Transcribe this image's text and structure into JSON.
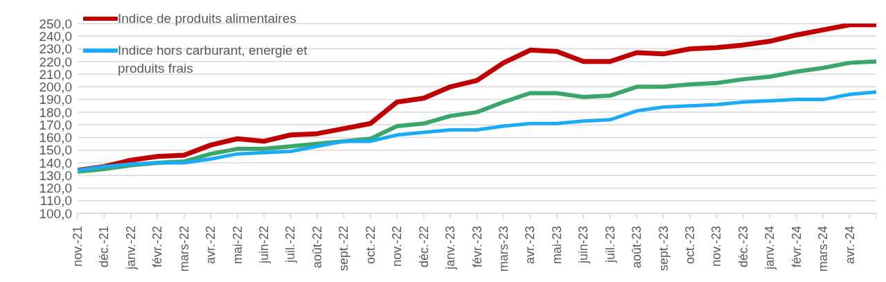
{
  "chart_data": {
    "type": "line",
    "categories": [
      "nov.-21",
      "déc.-21",
      "janv.-22",
      "févr.-22",
      "mars-22",
      "avr.-22",
      "mai-22",
      "juin-22",
      "juil.-22",
      "août-22",
      "sept.-22",
      "oct.-22",
      "nov.-22",
      "déc.-22",
      "janv.-23",
      "févr.-23",
      "mars-23",
      "avr.-23",
      "mai-23",
      "juin-23",
      "juil.-23",
      "août-23",
      "sept.-23",
      "oct.-23",
      "nov.-23",
      "déc.-23",
      "janv.-24",
      "févr.-24",
      "mars-24",
      "avr.-24",
      null
    ],
    "series": [
      {
        "name": "Indice de produits alimentaires",
        "color": "#c00000",
        "values": [
          134,
          137,
          142,
          145,
          146,
          154,
          159,
          157,
          162,
          163,
          167,
          171,
          188,
          191,
          200,
          205,
          219,
          229,
          228,
          220,
          220,
          227,
          226,
          230,
          231,
          233,
          236,
          241,
          245,
          249,
          249
        ]
      },
      {
        "color": "#3aa66a",
        "values": [
          133,
          135,
          138,
          140,
          141,
          147,
          151,
          151,
          153,
          155,
          157,
          159,
          169,
          171,
          177,
          180,
          188,
          195,
          195,
          192,
          193,
          200,
          200,
          202,
          203,
          206,
          208,
          212,
          215,
          219,
          220
        ]
      },
      {
        "name": "Indice hors carburant, energie et produits frais",
        "color": "#1aabf5",
        "values": [
          134,
          137,
          139,
          140,
          140,
          143,
          147,
          148,
          149,
          153,
          157,
          157,
          162,
          164,
          166,
          166,
          169,
          171,
          171,
          173,
          174,
          181,
          184,
          185,
          186,
          188,
          189,
          190,
          190,
          194,
          196
        ]
      }
    ],
    "ylim": [
      100,
      250
    ],
    "yticks": [
      {
        "value": 100,
        "label": "100,0"
      },
      {
        "value": 110,
        "label": "110,0"
      },
      {
        "value": 120,
        "label": "120,0"
      },
      {
        "value": 130,
        "label": "130,0"
      },
      {
        "value": 140,
        "label": "140,0"
      },
      {
        "value": 150,
        "label": "150,0"
      },
      {
        "value": 160,
        "label": "160,0"
      },
      {
        "value": 170,
        "label": "170,0"
      },
      {
        "value": 180,
        "label": "180,0"
      },
      {
        "value": 190,
        "label": "190,0"
      },
      {
        "value": 200,
        "label": "200,0"
      },
      {
        "value": 210,
        "label": "210,0"
      },
      {
        "value": 220,
        "label": "220,0"
      },
      {
        "value": 230,
        "label": "230,0"
      },
      {
        "value": 240,
        "label": "240,0"
      },
      {
        "value": 250,
        "label": "250,0"
      }
    ],
    "grid": "y",
    "legend": "top left",
    "marker": "none",
    "line_style": "solid"
  }
}
